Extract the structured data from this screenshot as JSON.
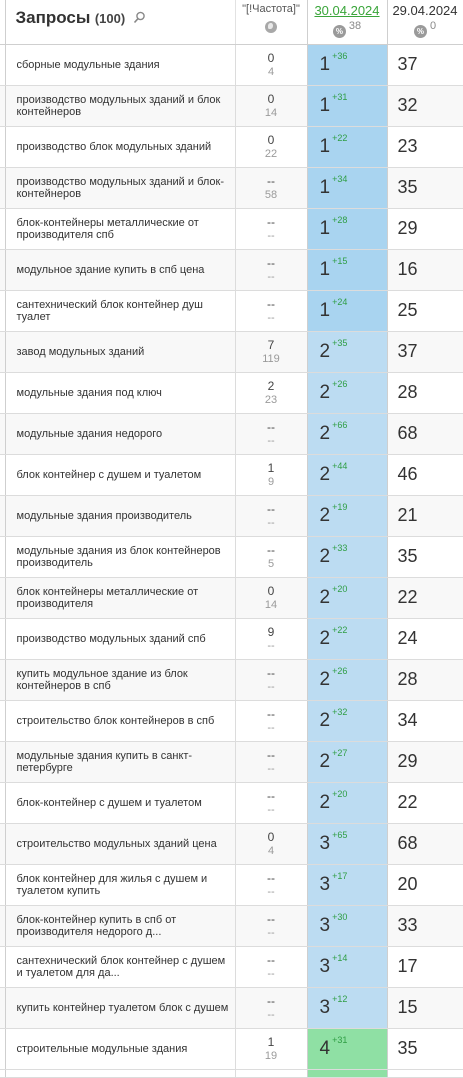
{
  "header": {
    "queries_title": "Запросы",
    "queries_count": "(100)",
    "frequency_label": "\"[!Частота]\"",
    "date_current": "30.04.2024",
    "date_current_delta": "38",
    "date_previous": "29.04.2024",
    "date_previous_delta": "0",
    "percent_icon_glyph": "%"
  },
  "rows": [
    {
      "query": "сборные модульные здания",
      "freq": "0",
      "freq2": "4",
      "pos": "1",
      "delta": "+36",
      "prev": "37",
      "tier": "t1"
    },
    {
      "query": "производство модульных зданий и блок контейнеров",
      "freq": "0",
      "freq2": "14",
      "pos": "1",
      "delta": "+31",
      "prev": "32",
      "tier": "t1"
    },
    {
      "query": "производство блок модульных зданий",
      "freq": "0",
      "freq2": "22",
      "pos": "1",
      "delta": "+22",
      "prev": "23",
      "tier": "t1"
    },
    {
      "query": "производство модульных зданий и блок-контейнеров",
      "freq": "--",
      "freq2": "58",
      "pos": "1",
      "delta": "+34",
      "prev": "35",
      "tier": "t1"
    },
    {
      "query": "блок-контейнеры металлические от производителя спб",
      "freq": "--",
      "freq2": "--",
      "pos": "1",
      "delta": "+28",
      "prev": "29",
      "tier": "t1"
    },
    {
      "query": "модульное здание купить в спб цена",
      "freq": "--",
      "freq2": "--",
      "pos": "1",
      "delta": "+15",
      "prev": "16",
      "tier": "t1"
    },
    {
      "query": "сантехнический блок контейнер душ туалет",
      "freq": "--",
      "freq2": "--",
      "pos": "1",
      "delta": "+24",
      "prev": "25",
      "tier": "t1"
    },
    {
      "query": "завод модульных зданий",
      "freq": "7",
      "freq2": "119",
      "pos": "2",
      "delta": "+35",
      "prev": "37",
      "tier": "t2"
    },
    {
      "query": "модульные здания под ключ",
      "freq": "2",
      "freq2": "23",
      "pos": "2",
      "delta": "+26",
      "prev": "28",
      "tier": "t2"
    },
    {
      "query": "модульные здания недорого",
      "freq": "--",
      "freq2": "--",
      "pos": "2",
      "delta": "+66",
      "prev": "68",
      "tier": "t2"
    },
    {
      "query": "блок контейнер с душем и туалетом",
      "freq": "1",
      "freq2": "9",
      "pos": "2",
      "delta": "+44",
      "prev": "46",
      "tier": "t2"
    },
    {
      "query": "модульные здания производитель",
      "freq": "--",
      "freq2": "--",
      "pos": "2",
      "delta": "+19",
      "prev": "21",
      "tier": "t2"
    },
    {
      "query": "модульные здания из блок контейнеров производитель",
      "freq": "--",
      "freq2": "5",
      "pos": "2",
      "delta": "+33",
      "prev": "35",
      "tier": "t2"
    },
    {
      "query": "блок контейнеры металлические от производителя",
      "freq": "0",
      "freq2": "14",
      "pos": "2",
      "delta": "+20",
      "prev": "22",
      "tier": "t2"
    },
    {
      "query": "производство модульных зданий спб",
      "freq": "9",
      "freq2": "--",
      "pos": "2",
      "delta": "+22",
      "prev": "24",
      "tier": "t2"
    },
    {
      "query": "купить модульное здание из блок контейнеров в спб",
      "freq": "--",
      "freq2": "--",
      "pos": "2",
      "delta": "+26",
      "prev": "28",
      "tier": "t2"
    },
    {
      "query": "строительство блок контейнеров в спб",
      "freq": "--",
      "freq2": "--",
      "pos": "2",
      "delta": "+32",
      "prev": "34",
      "tier": "t2"
    },
    {
      "query": "модульные здания купить в санкт-петербурге",
      "freq": "--",
      "freq2": "--",
      "pos": "2",
      "delta": "+27",
      "prev": "29",
      "tier": "t2"
    },
    {
      "query": "блок-контейнер с душем и туалетом",
      "freq": "--",
      "freq2": "--",
      "pos": "2",
      "delta": "+20",
      "prev": "22",
      "tier": "t2"
    },
    {
      "query": "строительство модульных зданий цена",
      "freq": "0",
      "freq2": "4",
      "pos": "3",
      "delta": "+65",
      "prev": "68",
      "tier": "t3"
    },
    {
      "query": "блок контейнер для жилья с душем и туалетом купить",
      "freq": "--",
      "freq2": "--",
      "pos": "3",
      "delta": "+17",
      "prev": "20",
      "tier": "t3"
    },
    {
      "query": "блок-контейнер купить в спб от производителя недорого д...",
      "freq": "--",
      "freq2": "--",
      "pos": "3",
      "delta": "+30",
      "prev": "33",
      "tier": "t3"
    },
    {
      "query": "сантехнический блок контейнер с душем и туалетом для да...",
      "freq": "--",
      "freq2": "--",
      "pos": "3",
      "delta": "+14",
      "prev": "17",
      "tier": "t3"
    },
    {
      "query": "купить контейнер туалетом блок с душем",
      "freq": "--",
      "freq2": "--",
      "pos": "3",
      "delta": "+12",
      "prev": "15",
      "tier": "t3"
    },
    {
      "query": "строительные модульные здания",
      "freq": "1",
      "freq2": "19",
      "pos": "4",
      "delta": "+31",
      "prev": "35",
      "tier": "t4"
    }
  ],
  "colors": {
    "pos_top1": "#a9d4f0",
    "pos_top3": "#bcdcf2",
    "pos_top4": "#8fe0a4",
    "delta_up": "#2f9e44",
    "date_link": "#3aa53a"
  }
}
